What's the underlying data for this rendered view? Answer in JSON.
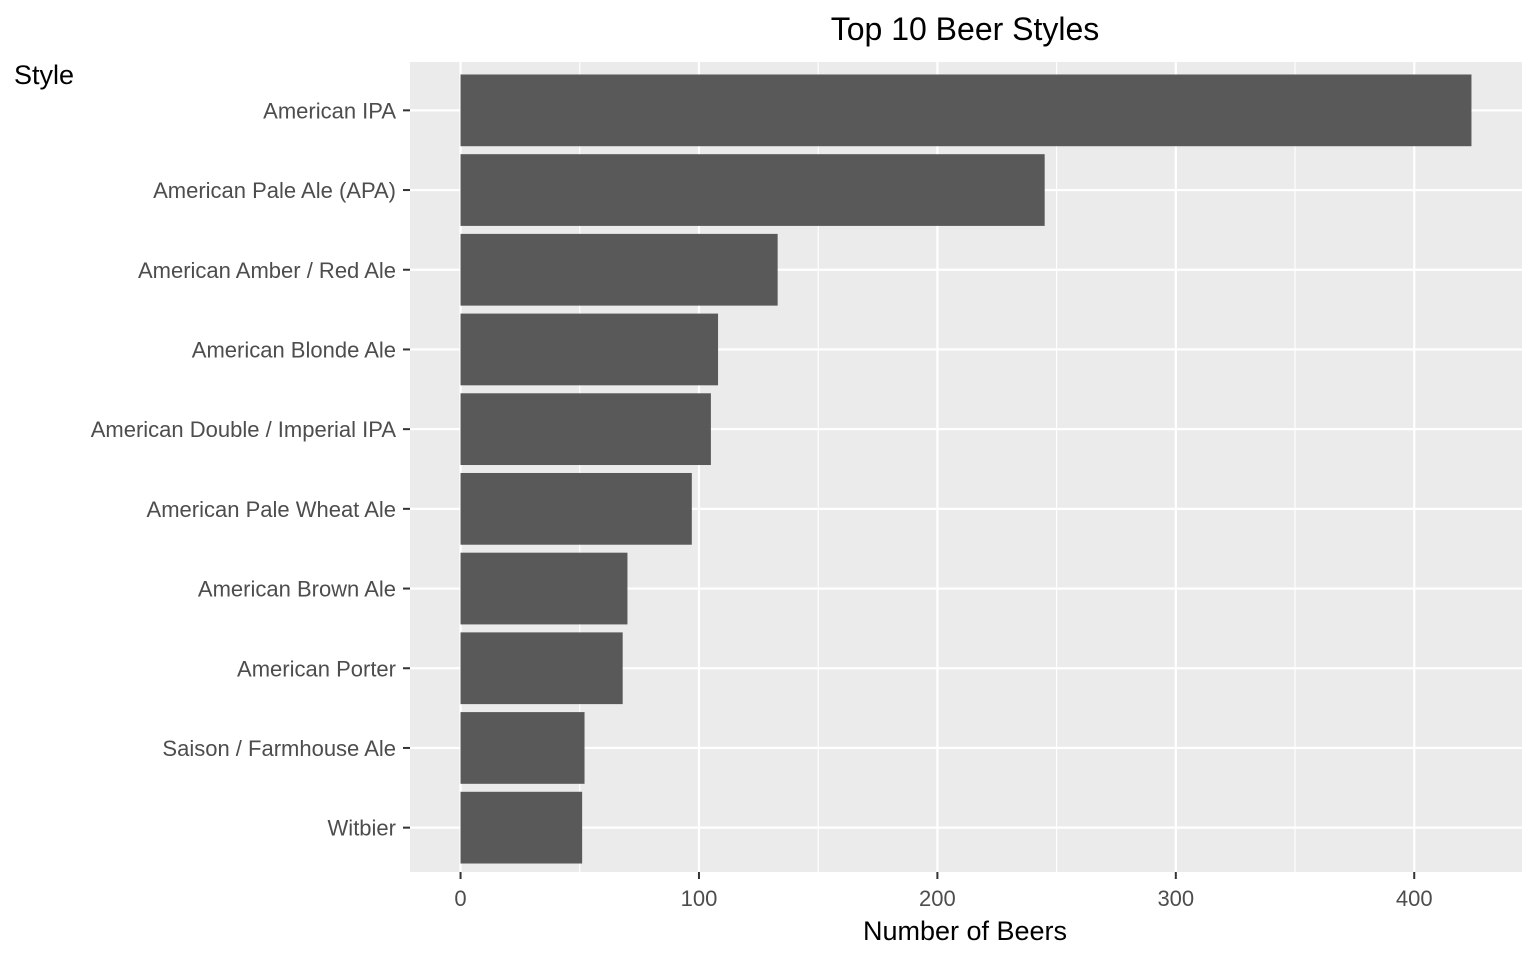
{
  "chart_data": {
    "type": "bar",
    "orientation": "horizontal",
    "title": "Top 10 Beer Styles",
    "xlabel": "Number of Beers",
    "ylabel": "Style",
    "categories": [
      "American IPA",
      "American Pale Ale (APA)",
      "American Amber / Red Ale",
      "American Blonde Ale",
      "American Double / Imperial IPA",
      "American Pale Wheat Ale",
      "American Brown Ale",
      "American Porter",
      "Saison / Farmhouse Ale",
      "Witbier"
    ],
    "values": [
      424,
      245,
      133,
      108,
      105,
      97,
      70,
      68,
      52,
      51
    ],
    "xticks": [
      0,
      100,
      200,
      300,
      400
    ],
    "xlim": [
      -21.2,
      445.2
    ],
    "grid": true,
    "legend": "none",
    "colors": {
      "bar": "#595959",
      "panel": "#ebebeb",
      "grid": "#ffffff",
      "tick_text": "#4d4d4d",
      "text": "#000000"
    }
  }
}
